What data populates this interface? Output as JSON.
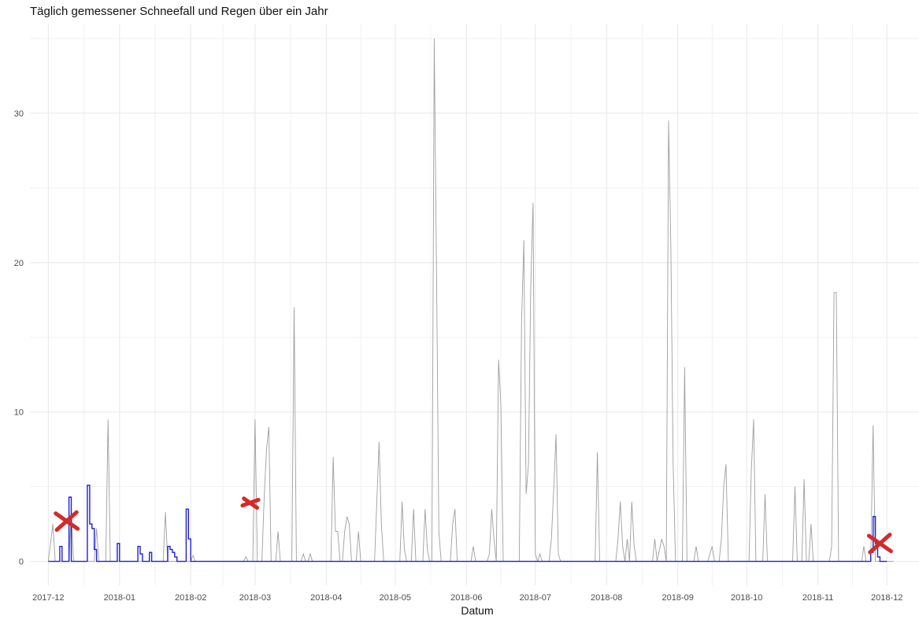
{
  "chart_data": {
    "type": "line",
    "title": "Täglich gemessener Schneefall und Regen über ein Jahr",
    "xlabel": "Datum",
    "ylabel": "",
    "x_domain": [
      "2017-11-23",
      "2018-12-15"
    ],
    "ylim": [
      -1.6,
      36.0
    ],
    "y_ticks": [
      0,
      10,
      20,
      30
    ],
    "x_ticks": [
      "2017-12-01",
      "2018-01-01",
      "2018-02-01",
      "2018-03-01",
      "2018-04-01",
      "2018-05-01",
      "2018-06-01",
      "2018-07-01",
      "2018-08-01",
      "2018-09-01",
      "2018-10-01",
      "2018-11-01",
      "2018-12-01"
    ],
    "x_tick_labels": [
      "2017-12",
      "2018-01",
      "2018-02",
      "2018-03",
      "2018-04",
      "2018-05",
      "2018-06",
      "2018-07",
      "2018-08",
      "2018-09",
      "2018-10",
      "2018-11",
      "2018-12"
    ],
    "grid": true,
    "legend": "none",
    "colors": {
      "rain": "#9e9e9e",
      "snow": "#1f1fd6",
      "marks": "#d42a2a",
      "grid": "#e8e8e8",
      "axis_text": "#4d4d4d"
    },
    "series": [
      {
        "values_note": "",
        "color": "#9e9e9e",
        "points": [
          [
            "2017-12-01",
            0
          ],
          [
            "2017-12-03",
            2.5
          ],
          [
            "2017-12-04",
            0
          ],
          [
            "2017-12-10",
            0
          ],
          [
            "2017-12-11",
            3.5
          ],
          [
            "2017-12-12",
            0
          ],
          [
            "2017-12-21",
            0
          ],
          [
            "2017-12-22",
            2.2
          ],
          [
            "2017-12-23",
            0
          ],
          [
            "2017-12-26",
            0
          ],
          [
            "2017-12-27",
            9.5
          ],
          [
            "2017-12-28",
            0
          ],
          [
            "2018-01-20",
            0
          ],
          [
            "2018-01-21",
            3.3
          ],
          [
            "2018-01-22",
            0
          ],
          [
            "2018-02-01",
            0
          ],
          [
            "2018-02-02",
            0.4
          ],
          [
            "2018-02-03",
            0
          ],
          [
            "2018-02-24",
            0
          ],
          [
            "2018-02-25",
            0.3
          ],
          [
            "2018-02-26",
            0
          ],
          [
            "2018-02-28",
            0
          ],
          [
            "2018-03-01",
            9.5
          ],
          [
            "2018-03-02",
            0
          ],
          [
            "2018-03-04",
            0
          ],
          [
            "2018-03-05",
            4.5
          ],
          [
            "2018-03-06",
            7.5
          ],
          [
            "2018-03-07",
            9.0
          ],
          [
            "2018-03-08",
            0
          ],
          [
            "2018-03-10",
            0
          ],
          [
            "2018-03-11",
            2.0
          ],
          [
            "2018-03-12",
            0
          ],
          [
            "2018-03-17",
            0
          ],
          [
            "2018-03-18",
            17.0
          ],
          [
            "2018-03-19",
            0
          ],
          [
            "2018-03-21",
            0
          ],
          [
            "2018-03-22",
            0.5
          ],
          [
            "2018-03-23",
            0
          ],
          [
            "2018-03-24",
            0
          ],
          [
            "2018-03-25",
            0.5
          ],
          [
            "2018-03-26",
            0
          ],
          [
            "2018-04-03",
            0
          ],
          [
            "2018-04-04",
            7.0
          ],
          [
            "2018-04-05",
            2.0
          ],
          [
            "2018-04-06",
            2.0
          ],
          [
            "2018-04-07",
            0
          ],
          [
            "2018-04-08",
            0
          ],
          [
            "2018-04-09",
            2.0
          ],
          [
            "2018-04-10",
            3.0
          ],
          [
            "2018-04-11",
            2.5
          ],
          [
            "2018-04-12",
            0
          ],
          [
            "2018-04-14",
            0
          ],
          [
            "2018-04-15",
            2.0
          ],
          [
            "2018-04-16",
            0
          ],
          [
            "2018-04-22",
            0
          ],
          [
            "2018-04-23",
            4.0
          ],
          [
            "2018-04-24",
            8.0
          ],
          [
            "2018-04-25",
            2.5
          ],
          [
            "2018-04-26",
            0
          ],
          [
            "2018-05-03",
            0
          ],
          [
            "2018-05-04",
            4.0
          ],
          [
            "2018-05-05",
            0.8
          ],
          [
            "2018-05-06",
            0
          ],
          [
            "2018-05-08",
            0
          ],
          [
            "2018-05-09",
            3.5
          ],
          [
            "2018-05-10",
            0
          ],
          [
            "2018-05-13",
            0
          ],
          [
            "2018-05-14",
            3.5
          ],
          [
            "2018-05-15",
            0.8
          ],
          [
            "2018-05-16",
            0
          ],
          [
            "2018-05-17",
            0
          ],
          [
            "2018-05-18",
            35.0
          ],
          [
            "2018-05-19",
            19.0
          ],
          [
            "2018-05-20",
            2.0
          ],
          [
            "2018-05-21",
            0
          ],
          [
            "2018-05-25",
            0
          ],
          [
            "2018-05-26",
            2.5
          ],
          [
            "2018-05-27",
            3.5
          ],
          [
            "2018-05-28",
            0
          ],
          [
            "2018-06-03",
            0
          ],
          [
            "2018-06-04",
            1.0
          ],
          [
            "2018-06-05",
            0
          ],
          [
            "2018-06-10",
            0
          ],
          [
            "2018-06-11",
            0.5
          ],
          [
            "2018-06-12",
            3.5
          ],
          [
            "2018-06-13",
            1.5
          ],
          [
            "2018-06-14",
            0
          ],
          [
            "2018-06-15",
            13.5
          ],
          [
            "2018-06-16",
            10.5
          ],
          [
            "2018-06-17",
            0
          ],
          [
            "2018-06-24",
            0
          ],
          [
            "2018-06-25",
            16.0
          ],
          [
            "2018-06-26",
            21.5
          ],
          [
            "2018-06-27",
            4.5
          ],
          [
            "2018-06-28",
            6.5
          ],
          [
            "2018-06-29",
            18.5
          ],
          [
            "2018-06-30",
            24.0
          ],
          [
            "2018-07-01",
            0.5
          ],
          [
            "2018-07-02",
            0
          ],
          [
            "2018-07-03",
            0.5
          ],
          [
            "2018-07-04",
            0
          ],
          [
            "2018-07-07",
            0
          ],
          [
            "2018-07-08",
            1.5
          ],
          [
            "2018-07-09",
            4.8
          ],
          [
            "2018-07-10",
            8.5
          ],
          [
            "2018-07-11",
            0.5
          ],
          [
            "2018-07-12",
            0
          ],
          [
            "2018-07-27",
            0
          ],
          [
            "2018-07-28",
            7.3
          ],
          [
            "2018-07-29",
            0
          ],
          [
            "2018-08-05",
            0
          ],
          [
            "2018-08-06",
            1.5
          ],
          [
            "2018-08-07",
            4.0
          ],
          [
            "2018-08-08",
            1.0
          ],
          [
            "2018-08-09",
            0
          ],
          [
            "2018-08-10",
            1.5
          ],
          [
            "2018-08-11",
            0
          ],
          [
            "2018-08-12",
            4.0
          ],
          [
            "2018-08-13",
            1.0
          ],
          [
            "2018-08-14",
            0
          ],
          [
            "2018-08-21",
            0
          ],
          [
            "2018-08-22",
            1.5
          ],
          [
            "2018-08-23",
            0
          ],
          [
            "2018-08-25",
            1.5
          ],
          [
            "2018-08-26",
            1.0
          ],
          [
            "2018-08-27",
            0
          ],
          [
            "2018-08-28",
            29.5
          ],
          [
            "2018-08-29",
            21.0
          ],
          [
            "2018-08-30",
            6.5
          ],
          [
            "2018-08-31",
            0
          ],
          [
            "2018-09-03",
            0
          ],
          [
            "2018-09-04",
            13.0
          ],
          [
            "2018-09-05",
            0
          ],
          [
            "2018-09-08",
            0
          ],
          [
            "2018-09-09",
            1.0
          ],
          [
            "2018-09-10",
            0
          ],
          [
            "2018-09-14",
            0
          ],
          [
            "2018-09-15",
            0.5
          ],
          [
            "2018-09-16",
            1.0
          ],
          [
            "2018-09-17",
            0
          ],
          [
            "2018-09-19",
            0
          ],
          [
            "2018-09-20",
            1.5
          ],
          [
            "2018-09-21",
            5.0
          ],
          [
            "2018-09-22",
            6.5
          ],
          [
            "2018-09-23",
            0
          ],
          [
            "2018-10-02",
            0
          ],
          [
            "2018-10-03",
            6.0
          ],
          [
            "2018-10-04",
            9.5
          ],
          [
            "2018-10-05",
            0
          ],
          [
            "2018-10-08",
            0
          ],
          [
            "2018-10-09",
            4.5
          ],
          [
            "2018-10-10",
            0
          ],
          [
            "2018-10-21",
            0
          ],
          [
            "2018-10-22",
            5.0
          ],
          [
            "2018-10-23",
            0
          ],
          [
            "2018-10-25",
            0
          ],
          [
            "2018-10-26",
            5.5
          ],
          [
            "2018-10-27",
            0
          ],
          [
            "2018-10-28",
            0
          ],
          [
            "2018-10-29",
            2.5
          ],
          [
            "2018-10-30",
            0
          ],
          [
            "2018-11-06",
            0
          ],
          [
            "2018-11-07",
            1.0
          ],
          [
            "2018-11-08",
            18.0
          ],
          [
            "2018-11-09",
            18.0
          ],
          [
            "2018-11-10",
            0
          ],
          [
            "2018-11-20",
            0
          ],
          [
            "2018-11-21",
            1.0
          ],
          [
            "2018-11-22",
            0
          ],
          [
            "2018-11-24",
            0
          ],
          [
            "2018-11-25",
            9.1
          ],
          [
            "2018-11-26",
            0
          ],
          [
            "2018-12-04",
            0
          ]
        ]
      },
      {
        "values_note": "",
        "color": "#1f1fd6",
        "step": true,
        "points": [
          [
            "2017-12-01",
            0
          ],
          [
            "2017-12-05",
            0
          ],
          [
            "2017-12-06",
            1.0
          ],
          [
            "2017-12-07",
            0
          ],
          [
            "2017-12-09",
            0
          ],
          [
            "2017-12-10",
            4.3
          ],
          [
            "2017-12-11",
            0
          ],
          [
            "2017-12-17",
            0
          ],
          [
            "2017-12-18",
            5.1
          ],
          [
            "2017-12-19",
            2.5
          ],
          [
            "2017-12-20",
            2.2
          ],
          [
            "2017-12-21",
            0.8
          ],
          [
            "2017-12-22",
            0
          ],
          [
            "2017-12-30",
            0
          ],
          [
            "2017-12-31",
            1.2
          ],
          [
            "2018-01-01",
            0
          ],
          [
            "2018-01-08",
            0
          ],
          [
            "2018-01-09",
            1.0
          ],
          [
            "2018-01-10",
            0.5
          ],
          [
            "2018-01-11",
            0
          ],
          [
            "2018-01-13",
            0
          ],
          [
            "2018-01-14",
            0.6
          ],
          [
            "2018-01-15",
            0
          ],
          [
            "2018-01-21",
            0
          ],
          [
            "2018-01-22",
            1.0
          ],
          [
            "2018-01-23",
            0.8
          ],
          [
            "2018-01-24",
            0.6
          ],
          [
            "2018-01-25",
            0.3
          ],
          [
            "2018-01-26",
            0
          ],
          [
            "2018-01-29",
            0
          ],
          [
            "2018-01-30",
            3.5
          ],
          [
            "2018-01-31",
            1.5
          ],
          [
            "2018-02-01",
            0
          ],
          [
            "2018-11-23",
            0
          ],
          [
            "2018-11-24",
            0.6
          ],
          [
            "2018-11-25",
            3.0
          ],
          [
            "2018-11-26",
            1.2
          ],
          [
            "2018-11-27",
            0.3
          ],
          [
            "2018-11-28",
            0
          ],
          [
            "2018-12-01",
            0
          ]
        ]
      }
    ],
    "annotations": [
      {
        "type": "cross",
        "x": "2017-12-09",
        "y": 2.7,
        "size": 1.0,
        "color": "#d42a2a"
      },
      {
        "type": "cross-partial",
        "x": "2018-02-27",
        "y": 3.9,
        "size": 0.6,
        "color": "#d42a2a"
      },
      {
        "type": "cross",
        "x": "2018-11-28",
        "y": 1.2,
        "size": 1.0,
        "color": "#d42a2a"
      }
    ]
  }
}
